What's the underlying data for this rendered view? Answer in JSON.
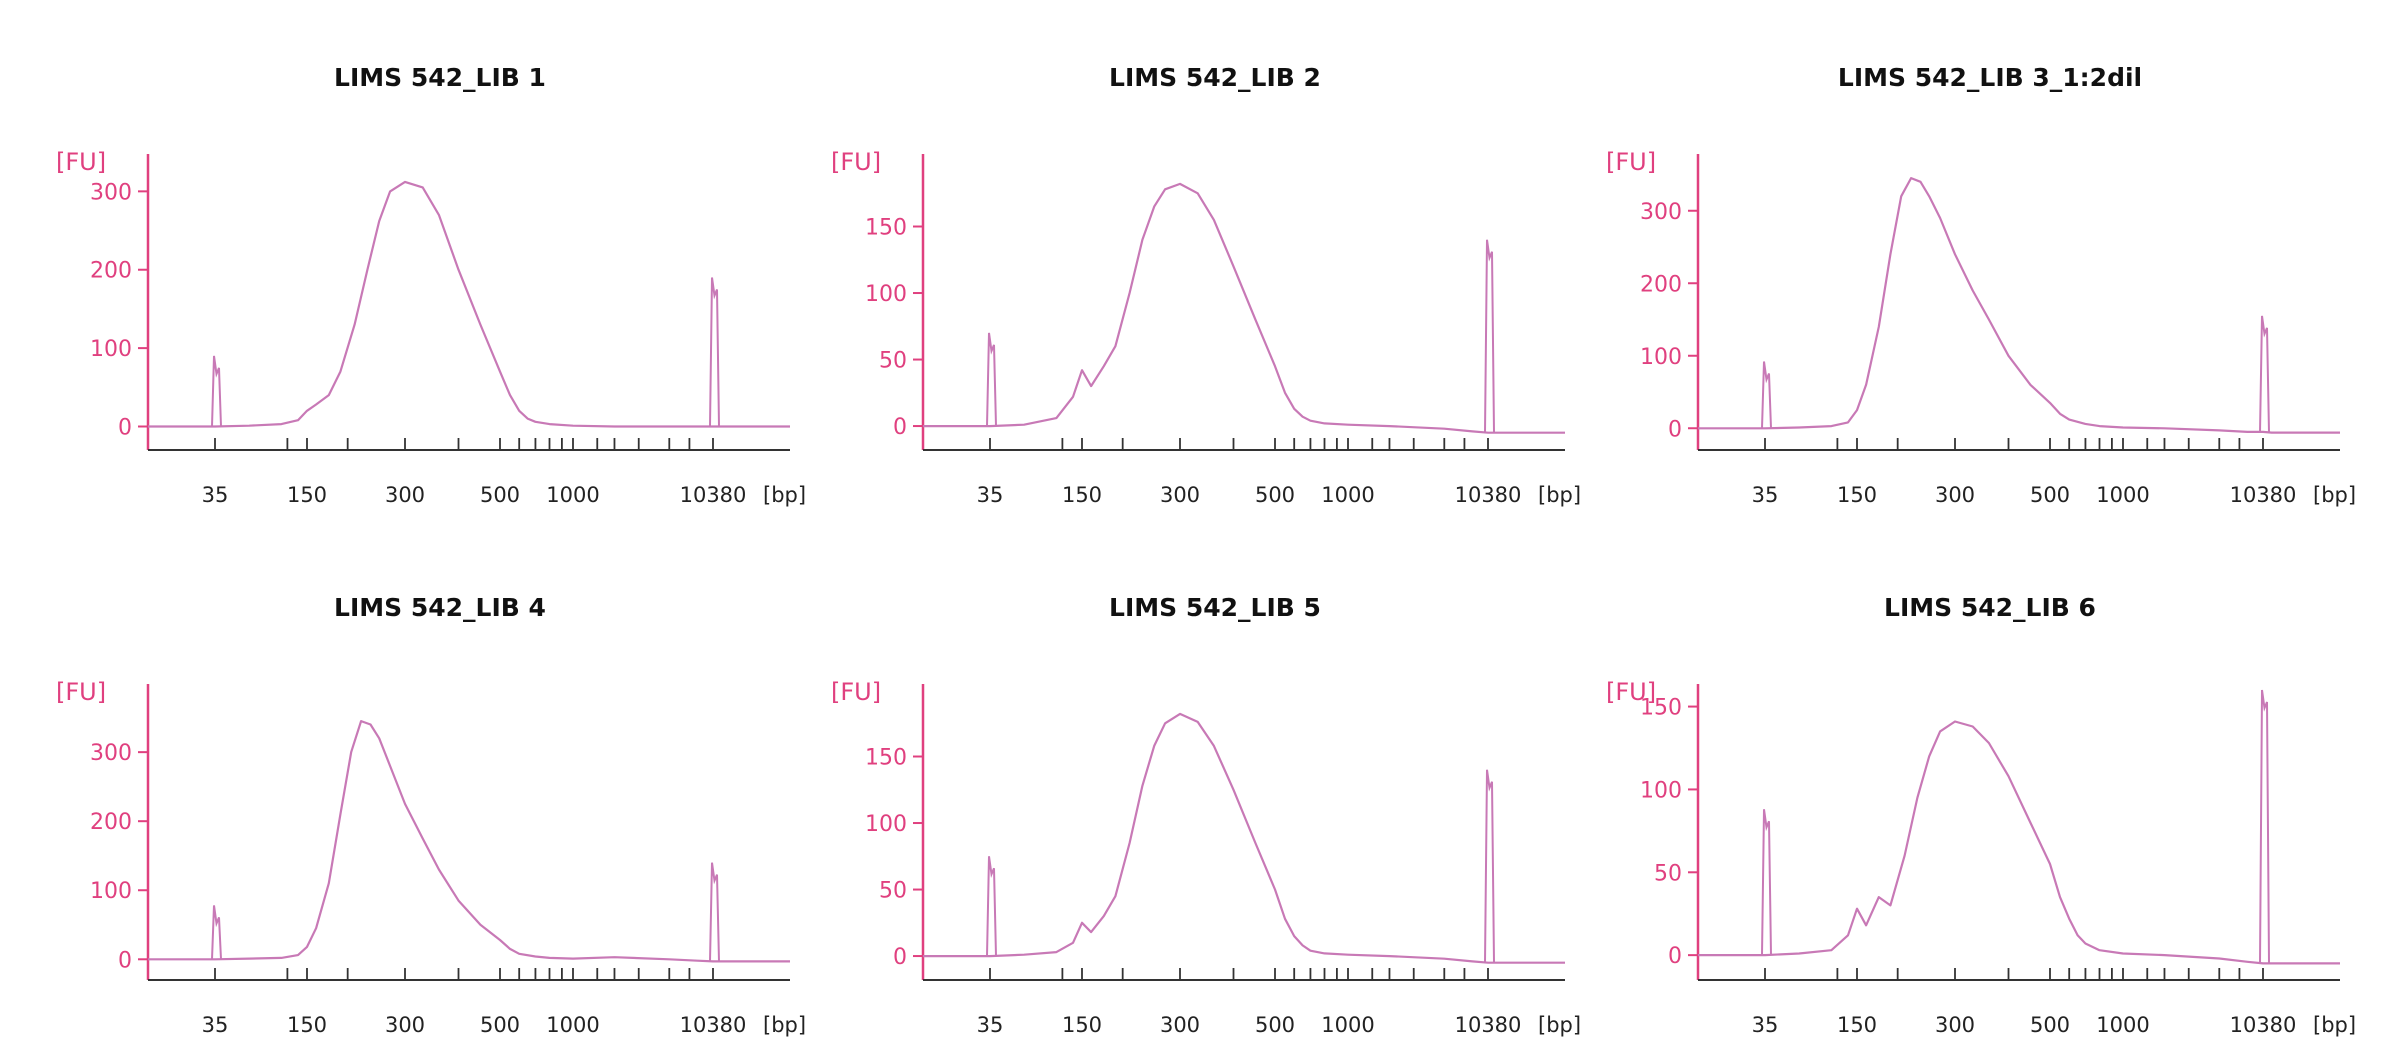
{
  "colors": {
    "axis": "#e0407f",
    "trace": "#c879b6",
    "text": "#111111",
    "xaxis": "#333333"
  },
  "chart_data": [
    {
      "type": "line",
      "title": "LIMS 542_LIB 1",
      "ylabel": "[FU]",
      "xunit": "[bp]",
      "xticks": [
        "35",
        "150",
        "300",
        "500",
        "1000",
        "10380"
      ],
      "ylim": [
        -30,
        340
      ],
      "yticks": [
        0,
        100,
        200,
        300
      ],
      "series": [
        {
          "x": [
            35,
            60,
            100,
            130,
            150,
            160,
            175,
            190,
            210,
            230,
            250,
            270,
            300,
            330,
            360,
            400,
            450,
            500,
            550,
            600,
            650,
            700,
            800,
            1000,
            2000,
            5000,
            8000,
            10380,
            12000
          ],
          "y": [
            0,
            1,
            3,
            8,
            20,
            28,
            40,
            70,
            130,
            200,
            262,
            300,
            312,
            305,
            270,
            200,
            130,
            70,
            40,
            20,
            10,
            6,
            3,
            1,
            0,
            0,
            0,
            0,
            0
          ],
          "peaks": [
            {
              "x": 35,
              "y": 90
            },
            {
              "x": 10380,
              "y": 190
            }
          ]
        }
      ]
    },
    {
      "type": "line",
      "title": "LIMS 542_LIB 2",
      "ylabel": "[FU]",
      "xunit": "[bp]",
      "xticks": [
        "35",
        "150",
        "300",
        "500",
        "1000",
        "10380"
      ],
      "ylim": [
        -18,
        200
      ],
      "yticks": [
        0,
        50,
        100,
        150
      ],
      "series": [
        {
          "x": [
            35,
            60,
            100,
            130,
            150,
            160,
            175,
            190,
            210,
            230,
            250,
            270,
            300,
            330,
            360,
            400,
            450,
            500,
            550,
            600,
            650,
            700,
            800,
            1000,
            2000,
            5000,
            8000,
            10380,
            12000
          ],
          "y": [
            0,
            1,
            6,
            22,
            42,
            30,
            45,
            60,
            100,
            140,
            165,
            178,
            182,
            175,
            155,
            120,
            80,
            45,
            25,
            13,
            7,
            4,
            2,
            1,
            0,
            -2,
            -4,
            -5,
            -5
          ],
          "peaks": [
            {
              "x": 35,
              "y": 70
            },
            {
              "x": 10380,
              "y": 140
            }
          ]
        }
      ]
    },
    {
      "type": "line",
      "title": "LIMS 542_LIB 3_1:2dil",
      "ylabel": "[FU]",
      "xunit": "[bp]",
      "xticks": [
        "35",
        "150",
        "300",
        "500",
        "1000",
        "10380"
      ],
      "ylim": [
        -30,
        370
      ],
      "yticks": [
        0,
        100,
        200,
        300
      ],
      "series": [
        {
          "x": [
            35,
            60,
            100,
            130,
            150,
            160,
            175,
            190,
            205,
            220,
            235,
            250,
            270,
            300,
            330,
            360,
            400,
            450,
            500,
            550,
            600,
            700,
            800,
            1000,
            2000,
            5000,
            8000,
            10380,
            12000
          ],
          "y": [
            0,
            1,
            3,
            8,
            25,
            60,
            140,
            240,
            320,
            345,
            340,
            320,
            290,
            240,
            190,
            150,
            100,
            60,
            35,
            20,
            12,
            6,
            3,
            1,
            0,
            -3,
            -5,
            -5,
            -6
          ],
          "peaks": [
            {
              "x": 35,
              "y": 92
            },
            {
              "x": 10380,
              "y": 155
            }
          ]
        }
      ]
    },
    {
      "type": "line",
      "title": "LIMS 542_LIB 4",
      "ylabel": "[FU]",
      "xunit": "[bp]",
      "xticks": [
        "35",
        "150",
        "300",
        "500",
        "1000",
        "10380"
      ],
      "ylim": [
        -30,
        390
      ],
      "yticks": [
        0,
        100,
        200,
        300
      ],
      "series": [
        {
          "x": [
            35,
            60,
            100,
            130,
            150,
            160,
            175,
            190,
            205,
            220,
            235,
            250,
            270,
            300,
            330,
            360,
            400,
            450,
            500,
            550,
            600,
            700,
            800,
            1000,
            2000,
            5000,
            8000,
            10380,
            12000
          ],
          "y": [
            0,
            1,
            2,
            6,
            18,
            45,
            110,
            210,
            300,
            345,
            340,
            320,
            280,
            225,
            175,
            130,
            85,
            50,
            28,
            15,
            8,
            4,
            2,
            1,
            3,
            0,
            -2,
            -3,
            -3
          ],
          "peaks": [
            {
              "x": 35,
              "y": 78
            },
            {
              "x": 10380,
              "y": 140
            }
          ]
        }
      ]
    },
    {
      "type": "line",
      "title": "LIMS 542_LIB 5",
      "ylabel": "[FU]",
      "xunit": "[bp]",
      "xticks": [
        "35",
        "150",
        "300",
        "500",
        "1000",
        "10380"
      ],
      "ylim": [
        -18,
        200
      ],
      "yticks": [
        0,
        50,
        100,
        150
      ],
      "series": [
        {
          "x": [
            35,
            60,
            100,
            130,
            150,
            160,
            175,
            190,
            210,
            230,
            250,
            270,
            300,
            330,
            360,
            400,
            450,
            500,
            550,
            600,
            650,
            700,
            800,
            1000,
            2000,
            5000,
            8000,
            10380,
            12000
          ],
          "y": [
            0,
            1,
            3,
            10,
            25,
            18,
            30,
            45,
            85,
            128,
            158,
            175,
            182,
            176,
            158,
            125,
            85,
            50,
            28,
            15,
            8,
            4,
            2,
            1,
            0,
            -2,
            -4,
            -5,
            -5
          ],
          "peaks": [
            {
              "x": 35,
              "y": 75
            },
            {
              "x": 10380,
              "y": 140
            }
          ]
        }
      ]
    },
    {
      "type": "line",
      "title": "LIMS 542_LIB 6",
      "ylabel": "[FU]",
      "xunit": "[bp]",
      "xticks": [
        "35",
        "150",
        "300",
        "500",
        "1000",
        "10380"
      ],
      "ylim": [
        -15,
        160
      ],
      "yticks": [
        0,
        50,
        100,
        150
      ],
      "series": [
        {
          "x": [
            35,
            60,
            100,
            130,
            150,
            160,
            175,
            190,
            210,
            230,
            250,
            270,
            300,
            330,
            360,
            400,
            450,
            500,
            550,
            600,
            650,
            700,
            800,
            1000,
            2000,
            5000,
            8000,
            10380,
            12000
          ],
          "y": [
            0,
            1,
            3,
            12,
            28,
            18,
            35,
            30,
            60,
            95,
            120,
            135,
            141,
            138,
            128,
            108,
            80,
            55,
            35,
            22,
            12,
            7,
            3,
            1,
            0,
            -2,
            -4,
            -5,
            -5
          ],
          "peaks": [
            {
              "x": 35,
              "y": 88
            },
            {
              "x": 10380,
              "y": 160
            }
          ]
        }
      ]
    }
  ]
}
